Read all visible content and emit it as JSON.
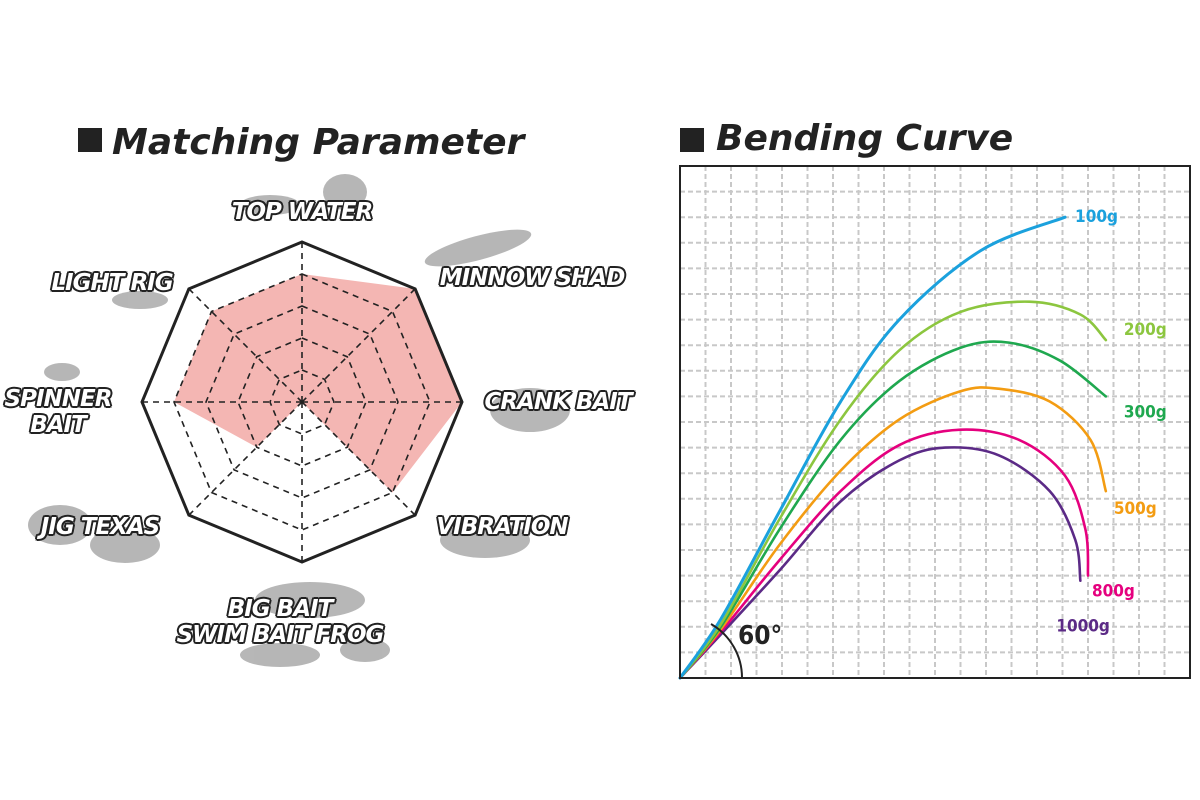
{
  "chart_data": [
    {
      "type": "radar",
      "title": "Matching Parameter",
      "categories": [
        "TOP WATER",
        "MINNOW SHAD",
        "CRANK BAIT",
        "VIBRATION",
        "BIG BAIT\nSWIM BAIT  FROG",
        "JIG  TEXAS",
        "SPINNER\nBAIT",
        "LIGHT RIG"
      ],
      "values": [
        4,
        5,
        5,
        4,
        0,
        2,
        4,
        4
      ],
      "color": "#f4b6b3",
      "rlim": [
        0,
        5
      ],
      "rticks": [
        1,
        2,
        3,
        4,
        5
      ]
    },
    {
      "type": "line",
      "title": "Bending Curve",
      "annotation": "60°",
      "xlim": [
        0,
        20
      ],
      "ylim": [
        0,
        20
      ],
      "xticks": [
        0,
        1,
        2,
        3,
        4,
        5,
        6,
        7,
        8,
        9,
        10,
        11,
        12,
        13,
        14,
        15,
        16,
        17,
        18,
        19,
        20
      ],
      "yticks": [
        0,
        1,
        2,
        3,
        4,
        5,
        6,
        7,
        8,
        9,
        10,
        11,
        12,
        13,
        14,
        15,
        16,
        17,
        18,
        19,
        20
      ],
      "grid": true,
      "series": [
        {
          "name": "100g",
          "color": "#1ba1dd",
          "x": [
            0,
            1.6,
            3.9,
            6.3,
            8.6,
            11.8,
            15.1
          ],
          "values": [
            0,
            2.3,
            6.5,
            10.8,
            14,
            16.7,
            18
          ]
        },
        {
          "name": "200g",
          "color": "#8cc63f",
          "x": [
            0,
            1.6,
            3.9,
            6.3,
            8.6,
            11,
            13.7,
            15.7,
            16.7
          ],
          "values": [
            0,
            2.1,
            6.2,
            10.1,
            12.8,
            14.3,
            14.7,
            14.2,
            13.2
          ]
        },
        {
          "name": "300g",
          "color": "#1fa84f",
          "x": [
            0,
            1.6,
            3.9,
            6.3,
            8.6,
            11,
            12.9,
            14.9,
            16.7
          ],
          "values": [
            0,
            2,
            5.8,
            9.3,
            11.6,
            12.9,
            13.1,
            12.4,
            11
          ]
        },
        {
          "name": "500g",
          "color": "#f39c12",
          "x": [
            0,
            1.6,
            3.9,
            6.3,
            8.6,
            11,
            12.5,
            14.5,
            16.1,
            16.7
          ],
          "values": [
            0,
            1.9,
            5.2,
            8.1,
            10.1,
            11.2,
            11.3,
            10.8,
            9.3,
            7.3
          ]
        },
        {
          "name": "800g",
          "color": "#e5007e",
          "x": [
            0,
            1.6,
            3.9,
            6.3,
            8.6,
            11,
            13.3,
            15.1,
            15.9,
            16
          ],
          "values": [
            0,
            1.8,
            4.6,
            7.3,
            9.1,
            9.7,
            9.3,
            7.9,
            5.8,
            4
          ]
        },
        {
          "name": "1000g",
          "color": "#5b2a86",
          "x": [
            0,
            1.6,
            3.9,
            6.3,
            8.6,
            10.4,
            12.5,
            14.5,
            15.5,
            15.7
          ],
          "values": [
            0,
            1.7,
            4.2,
            6.9,
            8.5,
            9,
            8.7,
            7.3,
            5.4,
            3.8
          ]
        }
      ]
    }
  ]
}
